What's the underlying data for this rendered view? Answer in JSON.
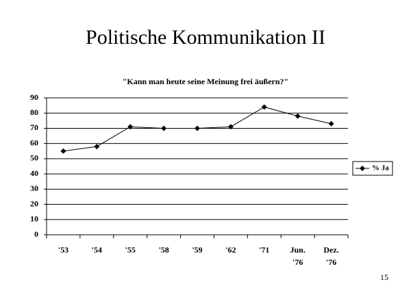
{
  "slide": {
    "title": "Politische Kommunikation II",
    "page_number": "15"
  },
  "chart_data": {
    "type": "line",
    "title": "\"Kann man heute seine Meinung frei äußern?\"",
    "categories": [
      "'53",
      "'54",
      "'55",
      "'58",
      "'59",
      "'62",
      "'71",
      "Jun. '76",
      "Dez. '76"
    ],
    "series": [
      {
        "name": "% Ja",
        "color": "#000000",
        "values": [
          55,
          58,
          71,
          70,
          70,
          71,
          84,
          78,
          73
        ]
      }
    ],
    "ylim": [
      0,
      90
    ],
    "yticks": [
      0,
      10,
      20,
      30,
      40,
      50,
      60,
      70,
      80,
      90
    ],
    "grid": true,
    "legend": "right"
  }
}
